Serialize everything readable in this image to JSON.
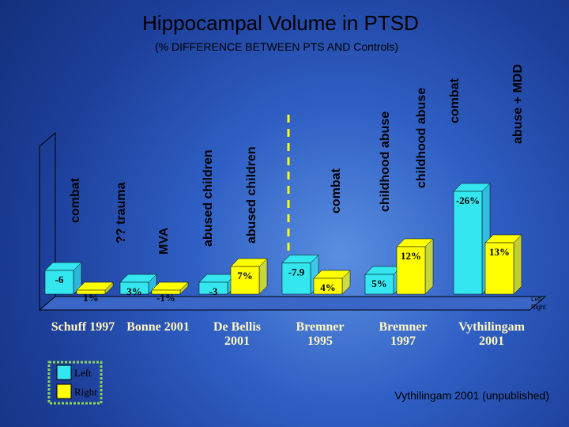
{
  "chart_data": {
    "type": "bar3d",
    "title": "Hippocampal Volume in PTSD",
    "subtitle": "(% DIFFERENCE BETWEEN PTS AND Controls)",
    "categories": [
      "Schuff 1997",
      "Bonne 2001",
      "De Bellis 2001",
      "Bremner 1995",
      "Bremner 1997",
      "Vythilingam 2001"
    ],
    "series": [
      {
        "name": "Left",
        "color": "#33e6f0",
        "values": [
          -6,
          3,
          -3,
          -7.9,
          5,
          -26
        ],
        "value_labels": [
          "-6",
          "3%",
          "-3",
          "-7.9",
          "5%",
          "-26%"
        ]
      },
      {
        "name": "Right",
        "color": "#ffff00",
        "values": [
          1,
          -1,
          7,
          4,
          12,
          13
        ],
        "value_labels": [
          "1%",
          "-1%",
          "7%",
          "4%",
          "12%",
          "13%"
        ]
      }
    ],
    "annotations": [
      "combat",
      "?? trauma",
      "MVA",
      "abused children",
      "abused children",
      "combat",
      "childhood abuse",
      "childhood abuse",
      "combat",
      "abuse + MDD"
    ],
    "source": "Vythilingam 2001 (unpublished)"
  }
}
